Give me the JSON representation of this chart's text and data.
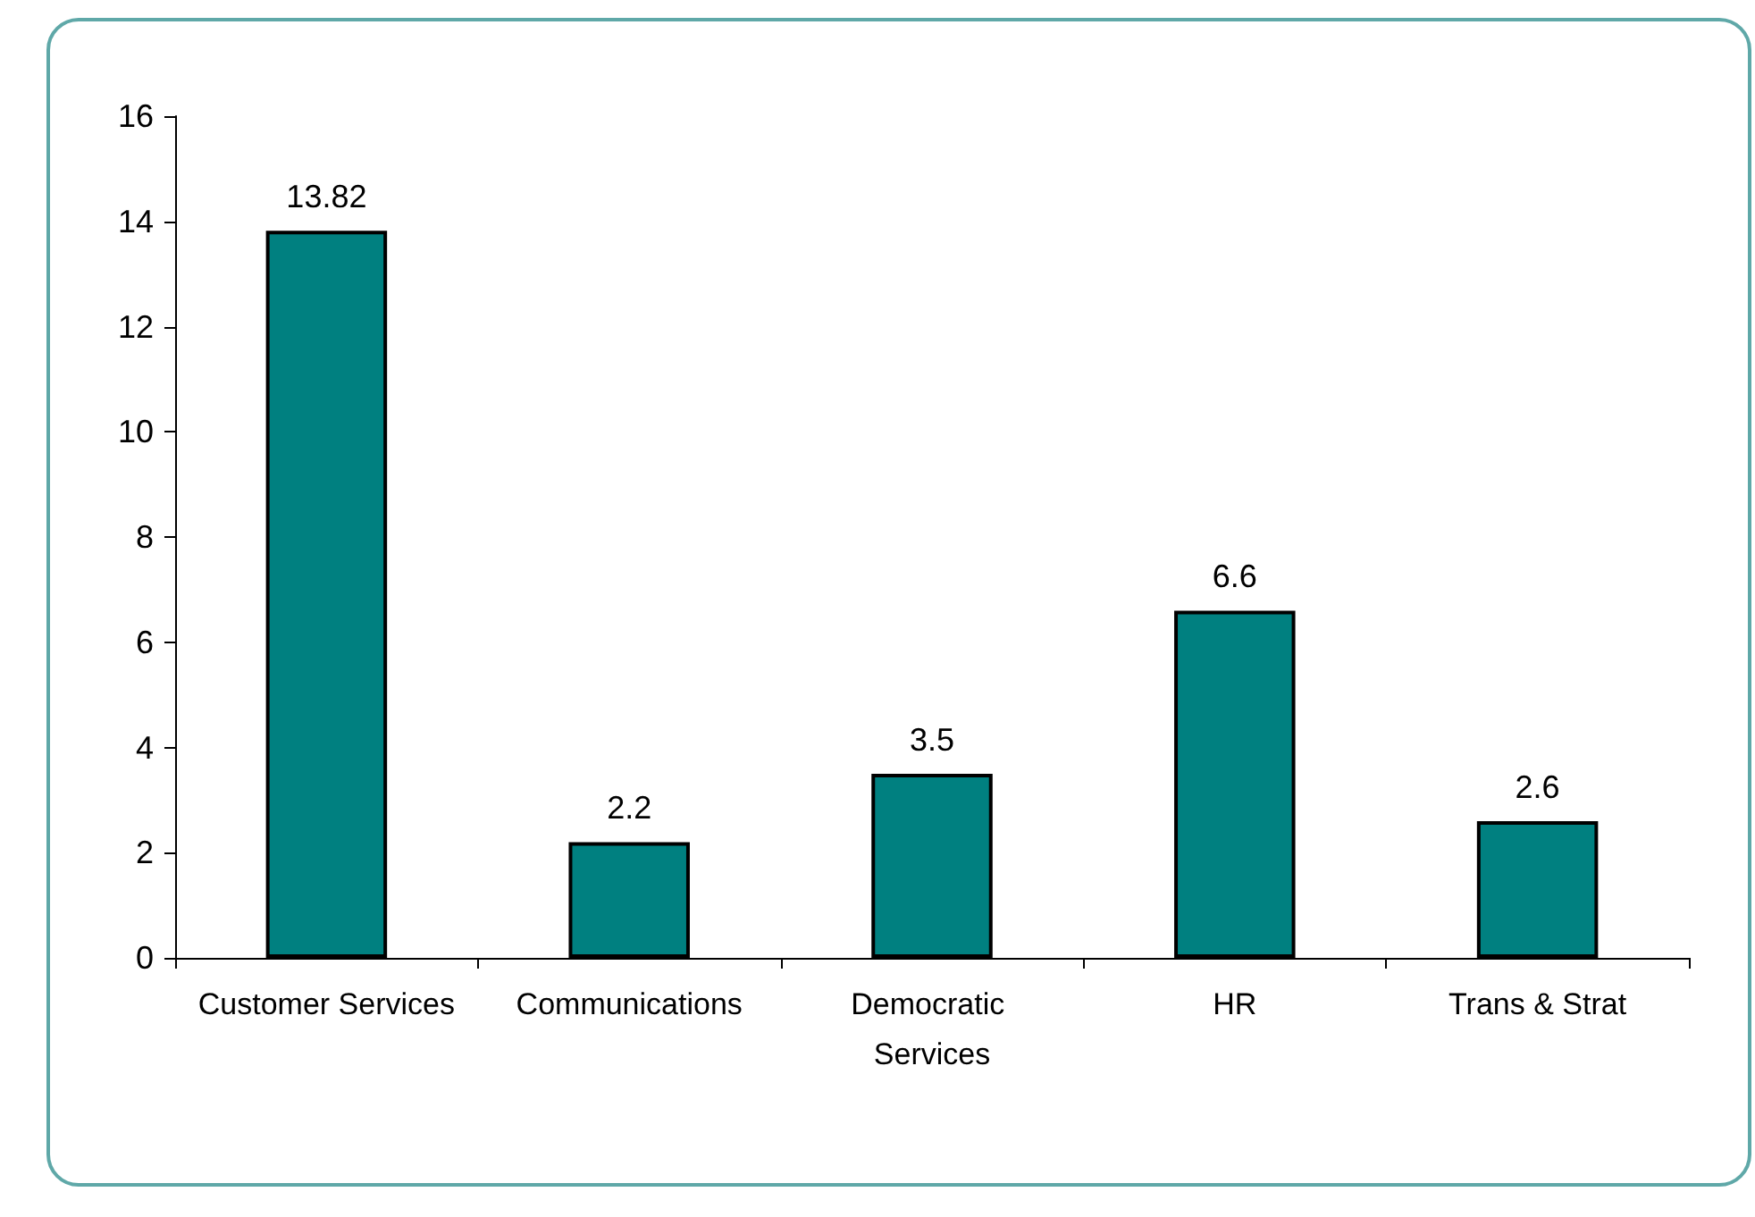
{
  "chart_data": {
    "type": "bar",
    "categories": [
      "Customer Services",
      "Communications",
      "Democratic Services",
      "HR",
      "Trans & Strat"
    ],
    "values": [
      13.82,
      2.2,
      3.5,
      6.6,
      2.6
    ],
    "color": "#008080",
    "ylim": [
      0,
      16
    ],
    "yticks": [
      0,
      2,
      4,
      6,
      8,
      10,
      12,
      14,
      16
    ],
    "grid": false,
    "data_labels": true
  }
}
